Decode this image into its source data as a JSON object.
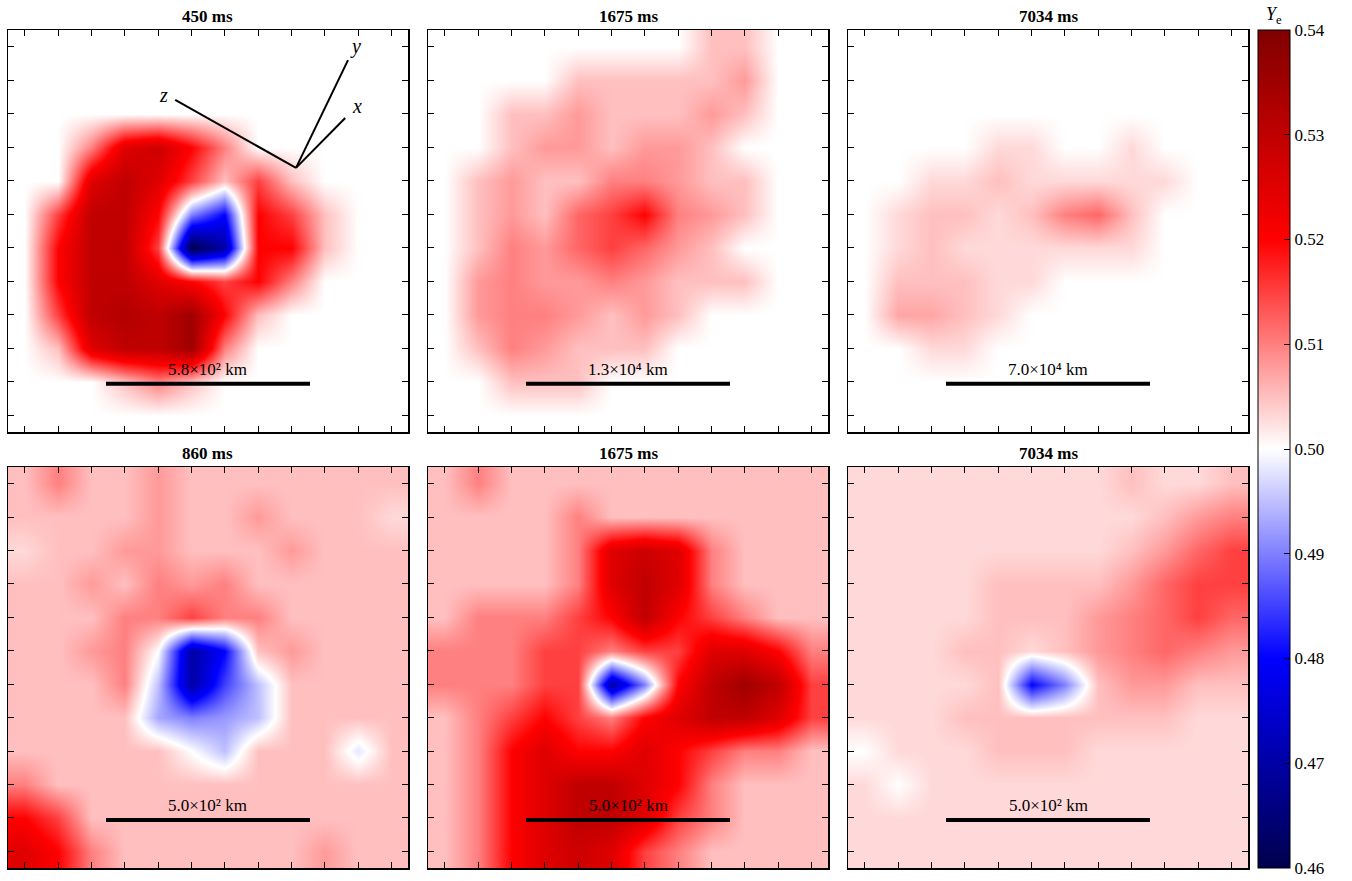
{
  "chart_data": [
    {
      "type": "heatmap",
      "title": "450 ms",
      "scale_bar": "5.8×10² km",
      "annotations": [
        {
          "text": "z"
        },
        {
          "text": "y"
        },
        {
          "text": "x"
        }
      ],
      "xlim": [
        -0.5,
        11.5
      ],
      "ylim": [
        11.5,
        -0.5
      ],
      "xticks": [
        0,
        1,
        2,
        3,
        4,
        5,
        6,
        7,
        8,
        9,
        10,
        11
      ],
      "yticks": [
        0,
        1,
        2,
        3,
        4,
        5,
        6,
        7,
        8,
        9,
        10,
        11
      ],
      "tick_labels": false,
      "z": [
        [
          0.5,
          0.5,
          0.5,
          0.5,
          0.5,
          0.5,
          0.5,
          0.5,
          0.5,
          0.5,
          0.5,
          0.5
        ],
        [
          0.5,
          0.5,
          0.5,
          0.5,
          0.5,
          0.5,
          0.5,
          0.5,
          0.5,
          0.5,
          0.5,
          0.5
        ],
        [
          0.5,
          0.5,
          0.5,
          0.5,
          0.5,
          0.5,
          0.5,
          0.5,
          0.5,
          0.5,
          0.5,
          0.5
        ],
        [
          0.5,
          0.5,
          0.51,
          0.525,
          0.528,
          0.52,
          0.51,
          0.5,
          0.5,
          0.5,
          0.5,
          0.5
        ],
        [
          0.5,
          0.5,
          0.525,
          0.53,
          0.525,
          0.515,
          0.505,
          0.515,
          0.505,
          0.5,
          0.5,
          0.5
        ],
        [
          0.5,
          0.515,
          0.53,
          0.53,
          0.52,
          0.49,
          0.48,
          0.52,
          0.515,
          0.505,
          0.5,
          0.5
        ],
        [
          0.5,
          0.52,
          0.53,
          0.53,
          0.515,
          0.46,
          0.47,
          0.52,
          0.52,
          0.505,
          0.5,
          0.5
        ],
        [
          0.5,
          0.52,
          0.53,
          0.53,
          0.525,
          0.52,
          0.515,
          0.52,
          0.51,
          0.5,
          0.5,
          0.5
        ],
        [
          0.5,
          0.515,
          0.53,
          0.532,
          0.53,
          0.535,
          0.52,
          0.505,
          0.5,
          0.5,
          0.5,
          0.5
        ],
        [
          0.5,
          0.505,
          0.525,
          0.53,
          0.53,
          0.535,
          0.51,
          0.5,
          0.5,
          0.5,
          0.5,
          0.5
        ],
        [
          0.5,
          0.5,
          0.5,
          0.505,
          0.51,
          0.505,
          0.5,
          0.5,
          0.5,
          0.5,
          0.5,
          0.5
        ],
        [
          0.5,
          0.5,
          0.5,
          0.5,
          0.5,
          0.5,
          0.5,
          0.5,
          0.5,
          0.5,
          0.5,
          0.5
        ]
      ]
    },
    {
      "type": "heatmap",
      "title": "1675 ms",
      "scale_bar": "1.3×10⁴ km",
      "xlim": [
        -0.5,
        11.5
      ],
      "ylim": [
        11.5,
        -0.5
      ],
      "xticks": [
        0,
        1,
        2,
        3,
        4,
        5,
        6,
        7,
        8,
        9,
        10,
        11
      ],
      "yticks": [
        0,
        1,
        2,
        3,
        4,
        5,
        6,
        7,
        8,
        9,
        10,
        11
      ],
      "tick_labels": false,
      "z": [
        [
          0.5,
          0.5,
          0.5,
          0.5,
          0.5,
          0.5,
          0.5,
          0.5,
          0.505,
          0.505,
          0.5,
          0.5
        ],
        [
          0.5,
          0.5,
          0.5,
          0.5,
          0.505,
          0.505,
          0.505,
          0.505,
          0.505,
          0.508,
          0.5,
          0.5
        ],
        [
          0.5,
          0.5,
          0.505,
          0.505,
          0.508,
          0.505,
          0.505,
          0.505,
          0.508,
          0.505,
          0.5,
          0.5
        ],
        [
          0.5,
          0.5,
          0.505,
          0.508,
          0.508,
          0.505,
          0.508,
          0.508,
          0.505,
          0.5,
          0.5,
          0.5
        ],
        [
          0.5,
          0.505,
          0.508,
          0.505,
          0.505,
          0.51,
          0.51,
          0.508,
          0.505,
          0.505,
          0.5,
          0.5
        ],
        [
          0.5,
          0.505,
          0.508,
          0.505,
          0.512,
          0.515,
          0.52,
          0.51,
          0.508,
          0.505,
          0.5,
          0.5
        ],
        [
          0.5,
          0.505,
          0.51,
          0.508,
          0.512,
          0.515,
          0.512,
          0.508,
          0.505,
          0.5,
          0.5,
          0.5
        ],
        [
          0.5,
          0.508,
          0.51,
          0.508,
          0.508,
          0.51,
          0.508,
          0.505,
          0.505,
          0.505,
          0.5,
          0.5
        ],
        [
          0.5,
          0.508,
          0.51,
          0.51,
          0.508,
          0.505,
          0.508,
          0.505,
          0.5,
          0.5,
          0.5,
          0.5
        ],
        [
          0.5,
          0.505,
          0.51,
          0.508,
          0.505,
          0.505,
          0.505,
          0.5,
          0.5,
          0.5,
          0.5,
          0.5
        ],
        [
          0.5,
          0.5,
          0.505,
          0.505,
          0.505,
          0.5,
          0.5,
          0.5,
          0.5,
          0.5,
          0.5,
          0.5
        ],
        [
          0.5,
          0.5,
          0.5,
          0.5,
          0.5,
          0.5,
          0.5,
          0.5,
          0.5,
          0.5,
          0.5,
          0.5
        ]
      ]
    },
    {
      "type": "heatmap",
      "title": "7034 ms",
      "scale_bar": "7.0×10⁴ km",
      "xlim": [
        -0.5,
        11.5
      ],
      "ylim": [
        11.5,
        -0.5
      ],
      "xticks": [
        0,
        1,
        2,
        3,
        4,
        5,
        6,
        7,
        8,
        9,
        10,
        11
      ],
      "yticks": [
        0,
        1,
        2,
        3,
        4,
        5,
        6,
        7,
        8,
        9,
        10,
        11
      ],
      "tick_labels": false,
      "z": [
        [
          0.5,
          0.5,
          0.5,
          0.5,
          0.5,
          0.5,
          0.5,
          0.5,
          0.5,
          0.5,
          0.5,
          0.5
        ],
        [
          0.5,
          0.5,
          0.5,
          0.5,
          0.5,
          0.5,
          0.5,
          0.5,
          0.5,
          0.5,
          0.5,
          0.5
        ],
        [
          0.5,
          0.5,
          0.5,
          0.5,
          0.5,
          0.5,
          0.5,
          0.5,
          0.5,
          0.5,
          0.5,
          0.5
        ],
        [
          0.5,
          0.5,
          0.5,
          0.5,
          0.503,
          0.503,
          0.5,
          0.5,
          0.503,
          0.5,
          0.5,
          0.5
        ],
        [
          0.5,
          0.5,
          0.503,
          0.503,
          0.505,
          0.503,
          0.503,
          0.503,
          0.503,
          0.503,
          0.5,
          0.5
        ],
        [
          0.5,
          0.503,
          0.505,
          0.505,
          0.503,
          0.505,
          0.51,
          0.512,
          0.505,
          0.5,
          0.5,
          0.5
        ],
        [
          0.5,
          0.503,
          0.505,
          0.503,
          0.503,
          0.503,
          0.503,
          0.503,
          0.503,
          0.5,
          0.5,
          0.5
        ],
        [
          0.5,
          0.505,
          0.505,
          0.505,
          0.503,
          0.503,
          0.5,
          0.5,
          0.5,
          0.5,
          0.5,
          0.5
        ],
        [
          0.5,
          0.507,
          0.507,
          0.505,
          0.503,
          0.5,
          0.5,
          0.5,
          0.5,
          0.5,
          0.5,
          0.5
        ],
        [
          0.5,
          0.5,
          0.503,
          0.503,
          0.5,
          0.5,
          0.5,
          0.5,
          0.5,
          0.5,
          0.5,
          0.5
        ],
        [
          0.5,
          0.5,
          0.5,
          0.5,
          0.5,
          0.5,
          0.5,
          0.5,
          0.5,
          0.5,
          0.5,
          0.5
        ],
        [
          0.5,
          0.5,
          0.5,
          0.5,
          0.5,
          0.5,
          0.5,
          0.5,
          0.5,
          0.5,
          0.5,
          0.5
        ]
      ]
    },
    {
      "type": "heatmap",
      "title": "860 ms",
      "scale_bar": "5.0×10² km",
      "xlim": [
        -0.5,
        11.5
      ],
      "ylim": [
        11.5,
        -0.5
      ],
      "xticks": [
        0,
        1,
        2,
        3,
        4,
        5,
        6,
        7,
        8,
        9,
        10,
        11
      ],
      "yticks": [
        0,
        1,
        2,
        3,
        4,
        5,
        6,
        7,
        8,
        9,
        10,
        11
      ],
      "tick_labels": false,
      "z": [
        [
          0.505,
          0.51,
          0.505,
          0.505,
          0.508,
          0.505,
          0.505,
          0.505,
          0.505,
          0.505,
          0.505,
          0.505
        ],
        [
          0.505,
          0.505,
          0.505,
          0.505,
          0.508,
          0.505,
          0.505,
          0.508,
          0.505,
          0.505,
          0.505,
          0.503
        ],
        [
          0.503,
          0.505,
          0.505,
          0.508,
          0.508,
          0.505,
          0.505,
          0.505,
          0.508,
          0.505,
          0.505,
          0.505
        ],
        [
          0.505,
          0.505,
          0.508,
          0.505,
          0.51,
          0.508,
          0.51,
          0.505,
          0.505,
          0.505,
          0.505,
          0.505
        ],
        [
          0.505,
          0.505,
          0.505,
          0.51,
          0.51,
          0.515,
          0.51,
          0.51,
          0.505,
          0.505,
          0.505,
          0.505
        ],
        [
          0.505,
          0.505,
          0.508,
          0.51,
          0.5,
          0.47,
          0.48,
          0.505,
          0.508,
          0.505,
          0.505,
          0.505
        ],
        [
          0.505,
          0.505,
          0.505,
          0.51,
          0.495,
          0.47,
          0.485,
          0.495,
          0.505,
          0.505,
          0.505,
          0.505
        ],
        [
          0.505,
          0.505,
          0.505,
          0.505,
          0.493,
          0.49,
          0.492,
          0.495,
          0.505,
          0.505,
          0.505,
          0.505
        ],
        [
          0.505,
          0.505,
          0.505,
          0.505,
          0.505,
          0.5,
          0.495,
          0.505,
          0.505,
          0.505,
          0.498,
          0.505
        ],
        [
          0.51,
          0.505,
          0.505,
          0.505,
          0.505,
          0.505,
          0.505,
          0.505,
          0.505,
          0.505,
          0.505,
          0.505
        ],
        [
          0.52,
          0.515,
          0.505,
          0.505,
          0.505,
          0.505,
          0.505,
          0.505,
          0.505,
          0.505,
          0.505,
          0.505
        ],
        [
          0.525,
          0.52,
          0.51,
          0.505,
          0.505,
          0.505,
          0.505,
          0.505,
          0.505,
          0.508,
          0.505,
          0.505
        ]
      ]
    },
    {
      "type": "heatmap",
      "title": "1675 ms",
      "scale_bar": "5.0×10² km",
      "xlim": [
        -0.5,
        11.5
      ],
      "ylim": [
        11.5,
        -0.5
      ],
      "xticks": [
        0,
        1,
        2,
        3,
        4,
        5,
        6,
        7,
        8,
        9,
        10,
        11
      ],
      "yticks": [
        0,
        1,
        2,
        3,
        4,
        5,
        6,
        7,
        8,
        9,
        10,
        11
      ],
      "tick_labels": false,
      "z": [
        [
          0.505,
          0.51,
          0.505,
          0.505,
          0.505,
          0.505,
          0.505,
          0.505,
          0.505,
          0.505,
          0.505,
          0.505
        ],
        [
          0.505,
          0.505,
          0.505,
          0.505,
          0.51,
          0.505,
          0.505,
          0.505,
          0.505,
          0.505,
          0.505,
          0.505
        ],
        [
          0.505,
          0.505,
          0.505,
          0.505,
          0.51,
          0.525,
          0.528,
          0.525,
          0.51,
          0.505,
          0.505,
          0.505
        ],
        [
          0.505,
          0.505,
          0.505,
          0.505,
          0.51,
          0.525,
          0.53,
          0.525,
          0.51,
          0.505,
          0.505,
          0.505
        ],
        [
          0.505,
          0.51,
          0.51,
          0.51,
          0.515,
          0.52,
          0.53,
          0.52,
          0.515,
          0.51,
          0.505,
          0.505
        ],
        [
          0.51,
          0.51,
          0.51,
          0.515,
          0.515,
          0.51,
          0.515,
          0.515,
          0.525,
          0.525,
          0.52,
          0.51
        ],
        [
          0.51,
          0.51,
          0.51,
          0.515,
          0.515,
          0.47,
          0.49,
          0.52,
          0.53,
          0.535,
          0.53,
          0.515
        ],
        [
          0.505,
          0.51,
          0.515,
          0.52,
          0.515,
          0.51,
          0.52,
          0.525,
          0.53,
          0.53,
          0.525,
          0.515
        ],
        [
          0.505,
          0.51,
          0.52,
          0.525,
          0.52,
          0.52,
          0.525,
          0.52,
          0.515,
          0.51,
          0.51,
          0.505
        ],
        [
          0.505,
          0.51,
          0.52,
          0.525,
          0.53,
          0.53,
          0.525,
          0.52,
          0.51,
          0.505,
          0.505,
          0.505
        ],
        [
          0.505,
          0.51,
          0.52,
          0.525,
          0.53,
          0.53,
          0.525,
          0.515,
          0.51,
          0.505,
          0.505,
          0.505
        ],
        [
          0.505,
          0.51,
          0.52,
          0.525,
          0.528,
          0.525,
          0.515,
          0.51,
          0.505,
          0.505,
          0.505,
          0.505
        ]
      ]
    },
    {
      "type": "heatmap",
      "title": "7034 ms",
      "scale_bar": "5.0×10² km",
      "xlim": [
        -0.5,
        11.5
      ],
      "ylim": [
        11.5,
        -0.5
      ],
      "xticks": [
        0,
        1,
        2,
        3,
        4,
        5,
        6,
        7,
        8,
        9,
        10,
        11
      ],
      "yticks": [
        0,
        1,
        2,
        3,
        4,
        5,
        6,
        7,
        8,
        9,
        10,
        11
      ],
      "tick_labels": false,
      "z": [
        [
          0.503,
          0.503,
          0.503,
          0.503,
          0.503,
          0.503,
          0.503,
          0.503,
          0.505,
          0.503,
          0.503,
          0.505
        ],
        [
          0.503,
          0.503,
          0.503,
          0.503,
          0.503,
          0.503,
          0.503,
          0.503,
          0.503,
          0.505,
          0.508,
          0.51
        ],
        [
          0.503,
          0.503,
          0.503,
          0.503,
          0.503,
          0.503,
          0.503,
          0.503,
          0.505,
          0.508,
          0.512,
          0.515
        ],
        [
          0.503,
          0.503,
          0.503,
          0.503,
          0.505,
          0.505,
          0.505,
          0.505,
          0.508,
          0.512,
          0.515,
          0.515
        ],
        [
          0.503,
          0.503,
          0.503,
          0.503,
          0.505,
          0.505,
          0.505,
          0.508,
          0.51,
          0.512,
          0.515,
          0.512
        ],
        [
          0.503,
          0.503,
          0.503,
          0.505,
          0.505,
          0.503,
          0.505,
          0.508,
          0.51,
          0.512,
          0.51,
          0.508
        ],
        [
          0.503,
          0.503,
          0.503,
          0.503,
          0.505,
          0.48,
          0.49,
          0.505,
          0.508,
          0.508,
          0.505,
          0.505
        ],
        [
          0.503,
          0.503,
          0.503,
          0.505,
          0.505,
          0.505,
          0.505,
          0.505,
          0.505,
          0.505,
          0.503,
          0.503
        ],
        [
          0.5,
          0.503,
          0.503,
          0.503,
          0.505,
          0.505,
          0.505,
          0.503,
          0.503,
          0.503,
          0.503,
          0.503
        ],
        [
          0.503,
          0.5,
          0.503,
          0.503,
          0.503,
          0.503,
          0.503,
          0.503,
          0.503,
          0.503,
          0.503,
          0.503
        ],
        [
          0.503,
          0.503,
          0.503,
          0.503,
          0.503,
          0.503,
          0.503,
          0.503,
          0.503,
          0.503,
          0.503,
          0.503
        ],
        [
          0.503,
          0.503,
          0.503,
          0.503,
          0.503,
          0.503,
          0.503,
          0.503,
          0.503,
          0.503,
          0.503,
          0.503
        ]
      ]
    }
  ],
  "colorbar": {
    "title": "Ye",
    "zlim": [
      0.46,
      0.54
    ],
    "zticks": [
      0.46,
      0.47,
      0.48,
      0.49,
      {
        "value": 0.5,
        "label": "0.50"
      },
      0.51,
      0.52,
      0.53,
      0.54
    ]
  }
}
